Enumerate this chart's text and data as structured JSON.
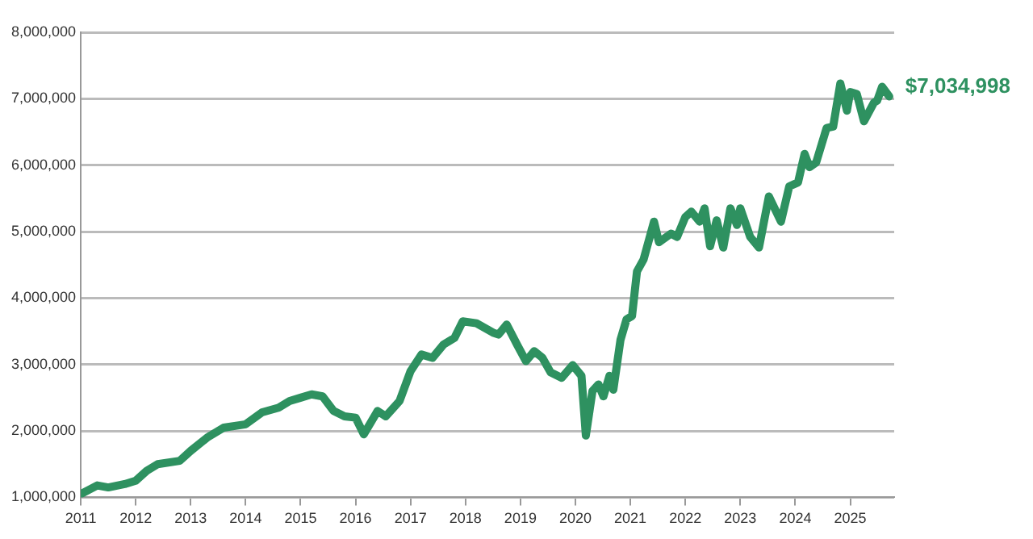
{
  "chart_data": {
    "type": "line",
    "grid": "y",
    "marker": "none",
    "line_style": "solid",
    "xlim": [
      2011,
      2025.8
    ],
    "xticks": [
      2011,
      2012,
      2013,
      2014,
      2015,
      2016,
      2017,
      2018,
      2019,
      2020,
      2021,
      2022,
      2023,
      2024,
      2025
    ],
    "ylim": [
      1000000,
      8000000
    ],
    "yticks": [
      {
        "value": 1000000,
        "label": "1,000,000"
      },
      {
        "value": 2000000,
        "label": "2,000,000"
      },
      {
        "value": 3000000,
        "label": "3,000,000"
      },
      {
        "value": 4000000,
        "label": "4,000,000"
      },
      {
        "value": 5000000,
        "label": "5,000,000"
      },
      {
        "value": 6000000,
        "label": "6,000,000"
      },
      {
        "value": 7000000,
        "label": "7,000,000"
      },
      {
        "value": 8000000,
        "label": "8,000,000"
      }
    ],
    "annotations": [
      {
        "text": "$7,034,998",
        "x": 2025.71,
        "y": 7034998
      }
    ],
    "series": [
      {
        "color": "#2e9160",
        "x": [
          2011,
          2011.3,
          2011.5,
          2011.8,
          2012,
          2012.2,
          2012.4,
          2012.8,
          2013,
          2013.3,
          2013.6,
          2014,
          2014.3,
          2014.6,
          2014.8,
          2015,
          2015.2,
          2015.4,
          2015.6,
          2015.8,
          2016,
          2016.15,
          2016.4,
          2016.55,
          2016.8,
          2017,
          2017.2,
          2017.4,
          2017.6,
          2017.8,
          2017.95,
          2018.2,
          2018.5,
          2018.6,
          2018.75,
          2018.95,
          2019.1,
          2019.25,
          2019.4,
          2019.55,
          2019.75,
          2019.95,
          2020.11,
          2020.19,
          2020.31,
          2020.42,
          2020.51,
          2020.62,
          2020.69,
          2020.82,
          2020.93,
          2021.03,
          2021.12,
          2021.24,
          2021.43,
          2021.52,
          2021.74,
          2021.85,
          2022,
          2022.11,
          2022.26,
          2022.35,
          2022.45,
          2022.57,
          2022.69,
          2022.82,
          2022.94,
          2023,
          2023.18,
          2023.34,
          2023.52,
          2023.74,
          2023.89,
          2024.05,
          2024.17,
          2024.26,
          2024.38,
          2024.57,
          2024.69,
          2024.82,
          2024.94,
          2025,
          2025.12,
          2025.25,
          2025.43,
          2025.49,
          2025.58,
          2025.71
        ],
        "values": [
          1050000,
          1180000,
          1150000,
          1200000,
          1250000,
          1400000,
          1500000,
          1550000,
          1700000,
          1900000,
          2050000,
          2100000,
          2280000,
          2350000,
          2450000,
          2500000,
          2550000,
          2520000,
          2300000,
          2220000,
          2200000,
          1950000,
          2300000,
          2220000,
          2450000,
          2900000,
          3150000,
          3100000,
          3300000,
          3400000,
          3650000,
          3620000,
          3480000,
          3450000,
          3600000,
          3280000,
          3050000,
          3200000,
          3100000,
          2880000,
          2800000,
          2990000,
          2830000,
          1930000,
          2600000,
          2700000,
          2520000,
          2830000,
          2620000,
          3370000,
          3680000,
          3730000,
          4400000,
          4580000,
          5150000,
          4840000,
          4970000,
          4920000,
          5220000,
          5300000,
          5150000,
          5350000,
          4780000,
          5170000,
          4760000,
          5350000,
          5100000,
          5350000,
          4920000,
          4760000,
          5530000,
          5150000,
          5680000,
          5740000,
          6170000,
          5970000,
          6040000,
          6560000,
          6580000,
          7230000,
          6820000,
          7100000,
          7070000,
          6660000,
          6940000,
          6970000,
          7180000,
          7034998
        ]
      }
    ]
  }
}
